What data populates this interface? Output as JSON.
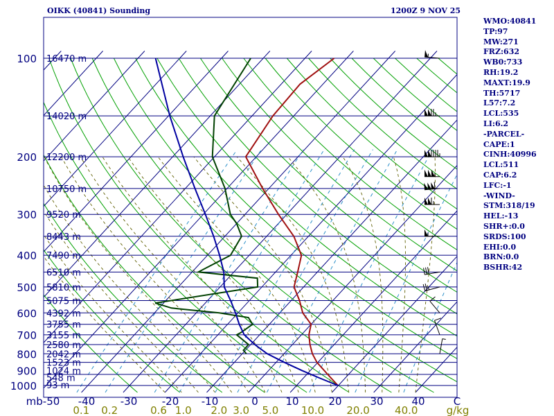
{
  "header": {
    "station": "OIKK (40841) Sounding",
    "time": "1200Z  9 NOV 25"
  },
  "stats": [
    "WMO:40841",
    "TP:97",
    "MW:271",
    "FRZ:632",
    "WB0:733",
    "RH:19.2",
    "MAXT:19.9",
    "TH:5717",
    "L57:7.2",
    "LCL:535",
    "LI:6.2",
    "-PARCEL-",
    "CAPE:1",
    "CINH:40996",
    "LCL:511",
    "CAP:6.2",
    "LFC:-1",
    "-WIND-",
    "STM:318/19",
    "HEL:-13",
    "SHR+:0.0",
    "SRDS:100",
    "EHI:0.0",
    "BRN:0.0",
    "BSHR:42"
  ],
  "colors": {
    "isobar": "#000080",
    "temperature": "#a01010",
    "dewpoint": "#004000",
    "parcel": "#0000a0",
    "isotherm": "#000080",
    "dry_adiabat": "#00a000",
    "moist_adiabat": "#5f5f00",
    "mixing_ratio": "#2a8fc8",
    "text": "#000080",
    "mixing_label": "#808000"
  },
  "chart_data": {
    "type": "line",
    "diagram": "Skew-T log-P sounding",
    "pressure_axis": {
      "unit": "mb",
      "scale": "log",
      "range": [
        1000,
        100
      ],
      "tick_labels": [
        {
          "p": 100,
          "label": "100"
        },
        {
          "p": 200,
          "label": "200"
        },
        {
          "p": 300,
          "label": "300"
        },
        {
          "p": 400,
          "label": "400"
        },
        {
          "p": 500,
          "label": "500"
        },
        {
          "p": 600,
          "label": "600"
        },
        {
          "p": 700,
          "label": "700"
        },
        {
          "p": 800,
          "label": "800"
        },
        {
          "p": 900,
          "label": "900"
        },
        {
          "p": 1000,
          "label": "1000"
        }
      ]
    },
    "isobars": [
      1000,
      925,
      850,
      800,
      750,
      700,
      650,
      600,
      550,
      500,
      450,
      400,
      350,
      300,
      250,
      200,
      150,
      100
    ],
    "height_labels": [
      {
        "p": 994,
        "label": "93 m"
      },
      {
        "p": 945,
        "label": "548 m"
      },
      {
        "p": 900,
        "label": "1024 m"
      },
      {
        "p": 850,
        "label": "1523 m"
      },
      {
        "p": 800,
        "label": "2042 m"
      },
      {
        "p": 750,
        "label": "2580 m"
      },
      {
        "p": 700,
        "label": "3155 m"
      },
      {
        "p": 650,
        "label": "3755 m"
      },
      {
        "p": 600,
        "label": "4392 m"
      },
      {
        "p": 550,
        "label": "5075 m"
      },
      {
        "p": 500,
        "label": "5810 m"
      },
      {
        "p": 450,
        "label": "6510 m"
      },
      {
        "p": 400,
        "label": "7490 m"
      },
      {
        "p": 350,
        "label": "8443 m"
      },
      {
        "p": 300,
        "label": "9520 m"
      },
      {
        "p": 250,
        "label": "10750 m"
      },
      {
        "p": 200,
        "label": "12200 m"
      },
      {
        "p": 150,
        "label": "14020 m"
      },
      {
        "p": 100,
        "label": "16470 m"
      }
    ],
    "temperature_axis": {
      "unit": "C",
      "ticks": [
        -50,
        -40,
        -30,
        -20,
        -10,
        0,
        10,
        20,
        30,
        40
      ],
      "labels": [
        "mb-50",
        "-40",
        "-30",
        "-20",
        "-10",
        "0",
        "10",
        "20",
        "30",
        "40",
        "C"
      ]
    },
    "mixing_ratio_axis": {
      "unit": "g/kg",
      "values": [
        0.1,
        0.2,
        0.6,
        1.0,
        2.0,
        3.0,
        5.0,
        10.0,
        20.0,
        40.0
      ],
      "labels": [
        "0.1",
        "0.2",
        "0.6",
        "1.0",
        "2.0",
        "3.0",
        "5.0",
        "10.0",
        "20.0",
        "40.0"
      ],
      "unit_label": "g/kg"
    },
    "series": [
      {
        "key": "temperature",
        "points": [
          [
            1000,
            19.9
          ],
          [
            925,
            15.0
          ],
          [
            850,
            9.8
          ],
          [
            800,
            6.8
          ],
          [
            750,
            4.2
          ],
          [
            700,
            1.8
          ],
          [
            650,
            0.0
          ],
          [
            600,
            -4.5
          ],
          [
            550,
            -8.0
          ],
          [
            500,
            -12.3
          ],
          [
            450,
            -14.7
          ],
          [
            400,
            -17.5
          ],
          [
            350,
            -23.5
          ],
          [
            300,
            -32.0
          ],
          [
            250,
            -41.5
          ],
          [
            200,
            -52.5
          ],
          [
            150,
            -55.0
          ],
          [
            120,
            -55.5
          ],
          [
            100,
            -53.0
          ]
        ]
      },
      {
        "key": "dewpoint",
        "points": [
          [
            800,
            -9.0
          ],
          [
            780,
            -10.5
          ],
          [
            750,
            -10.5
          ],
          [
            700,
            -15.5
          ],
          [
            690,
            -15.0
          ],
          [
            650,
            -14.0
          ],
          [
            620,
            -16.5
          ],
          [
            600,
            -24.5
          ],
          [
            580,
            -37.0
          ],
          [
            560,
            -42.0
          ],
          [
            500,
            -21.0
          ],
          [
            470,
            -23.0
          ],
          [
            450,
            -38.5
          ],
          [
            400,
            -34.5
          ],
          [
            350,
            -36.0
          ],
          [
            320,
            -40.0
          ],
          [
            300,
            -43.5
          ],
          [
            250,
            -50.5
          ],
          [
            200,
            -60.5
          ],
          [
            150,
            -69.0
          ],
          [
            100,
            -73.0
          ]
        ]
      },
      {
        "key": "parcel",
        "points": [
          [
            1000,
            19.9
          ],
          [
            950,
            14.0
          ],
          [
            900,
            8.0
          ],
          [
            850,
            2.0
          ],
          [
            800,
            -4.0
          ],
          [
            750,
            -9.0
          ],
          [
            700,
            -13.7
          ],
          [
            650,
            -17.2
          ],
          [
            600,
            -20.6
          ],
          [
            550,
            -24.5
          ],
          [
            500,
            -29.0
          ],
          [
            450,
            -32.4
          ],
          [
            400,
            -37.1
          ],
          [
            350,
            -42.7
          ],
          [
            300,
            -49.5
          ],
          [
            250,
            -57.7
          ],
          [
            200,
            -67.5
          ],
          [
            150,
            -79.7
          ],
          [
            100,
            -95.8
          ]
        ]
      }
    ],
    "wind_barbs": [
      {
        "p": 100,
        "dir": 275,
        "spd": 55
      },
      {
        "p": 150,
        "dir": 270,
        "spd": 125
      },
      {
        "p": 200,
        "dir": 270,
        "spd": 145
      },
      {
        "p": 230,
        "dir": 270,
        "spd": 155
      },
      {
        "p": 250,
        "dir": 265,
        "spd": 160
      },
      {
        "p": 280,
        "dir": 270,
        "spd": 115
      },
      {
        "p": 350,
        "dir": 270,
        "spd": 55
      },
      {
        "p": 450,
        "dir": 260,
        "spd": 30
      },
      {
        "p": 500,
        "dir": 255,
        "spd": 25
      },
      {
        "p": 600,
        "dir": 320,
        "spd": 10
      },
      {
        "p": 700,
        "dir": 340,
        "spd": 10
      },
      {
        "p": 800,
        "dir": 10,
        "spd": 5
      }
    ]
  }
}
